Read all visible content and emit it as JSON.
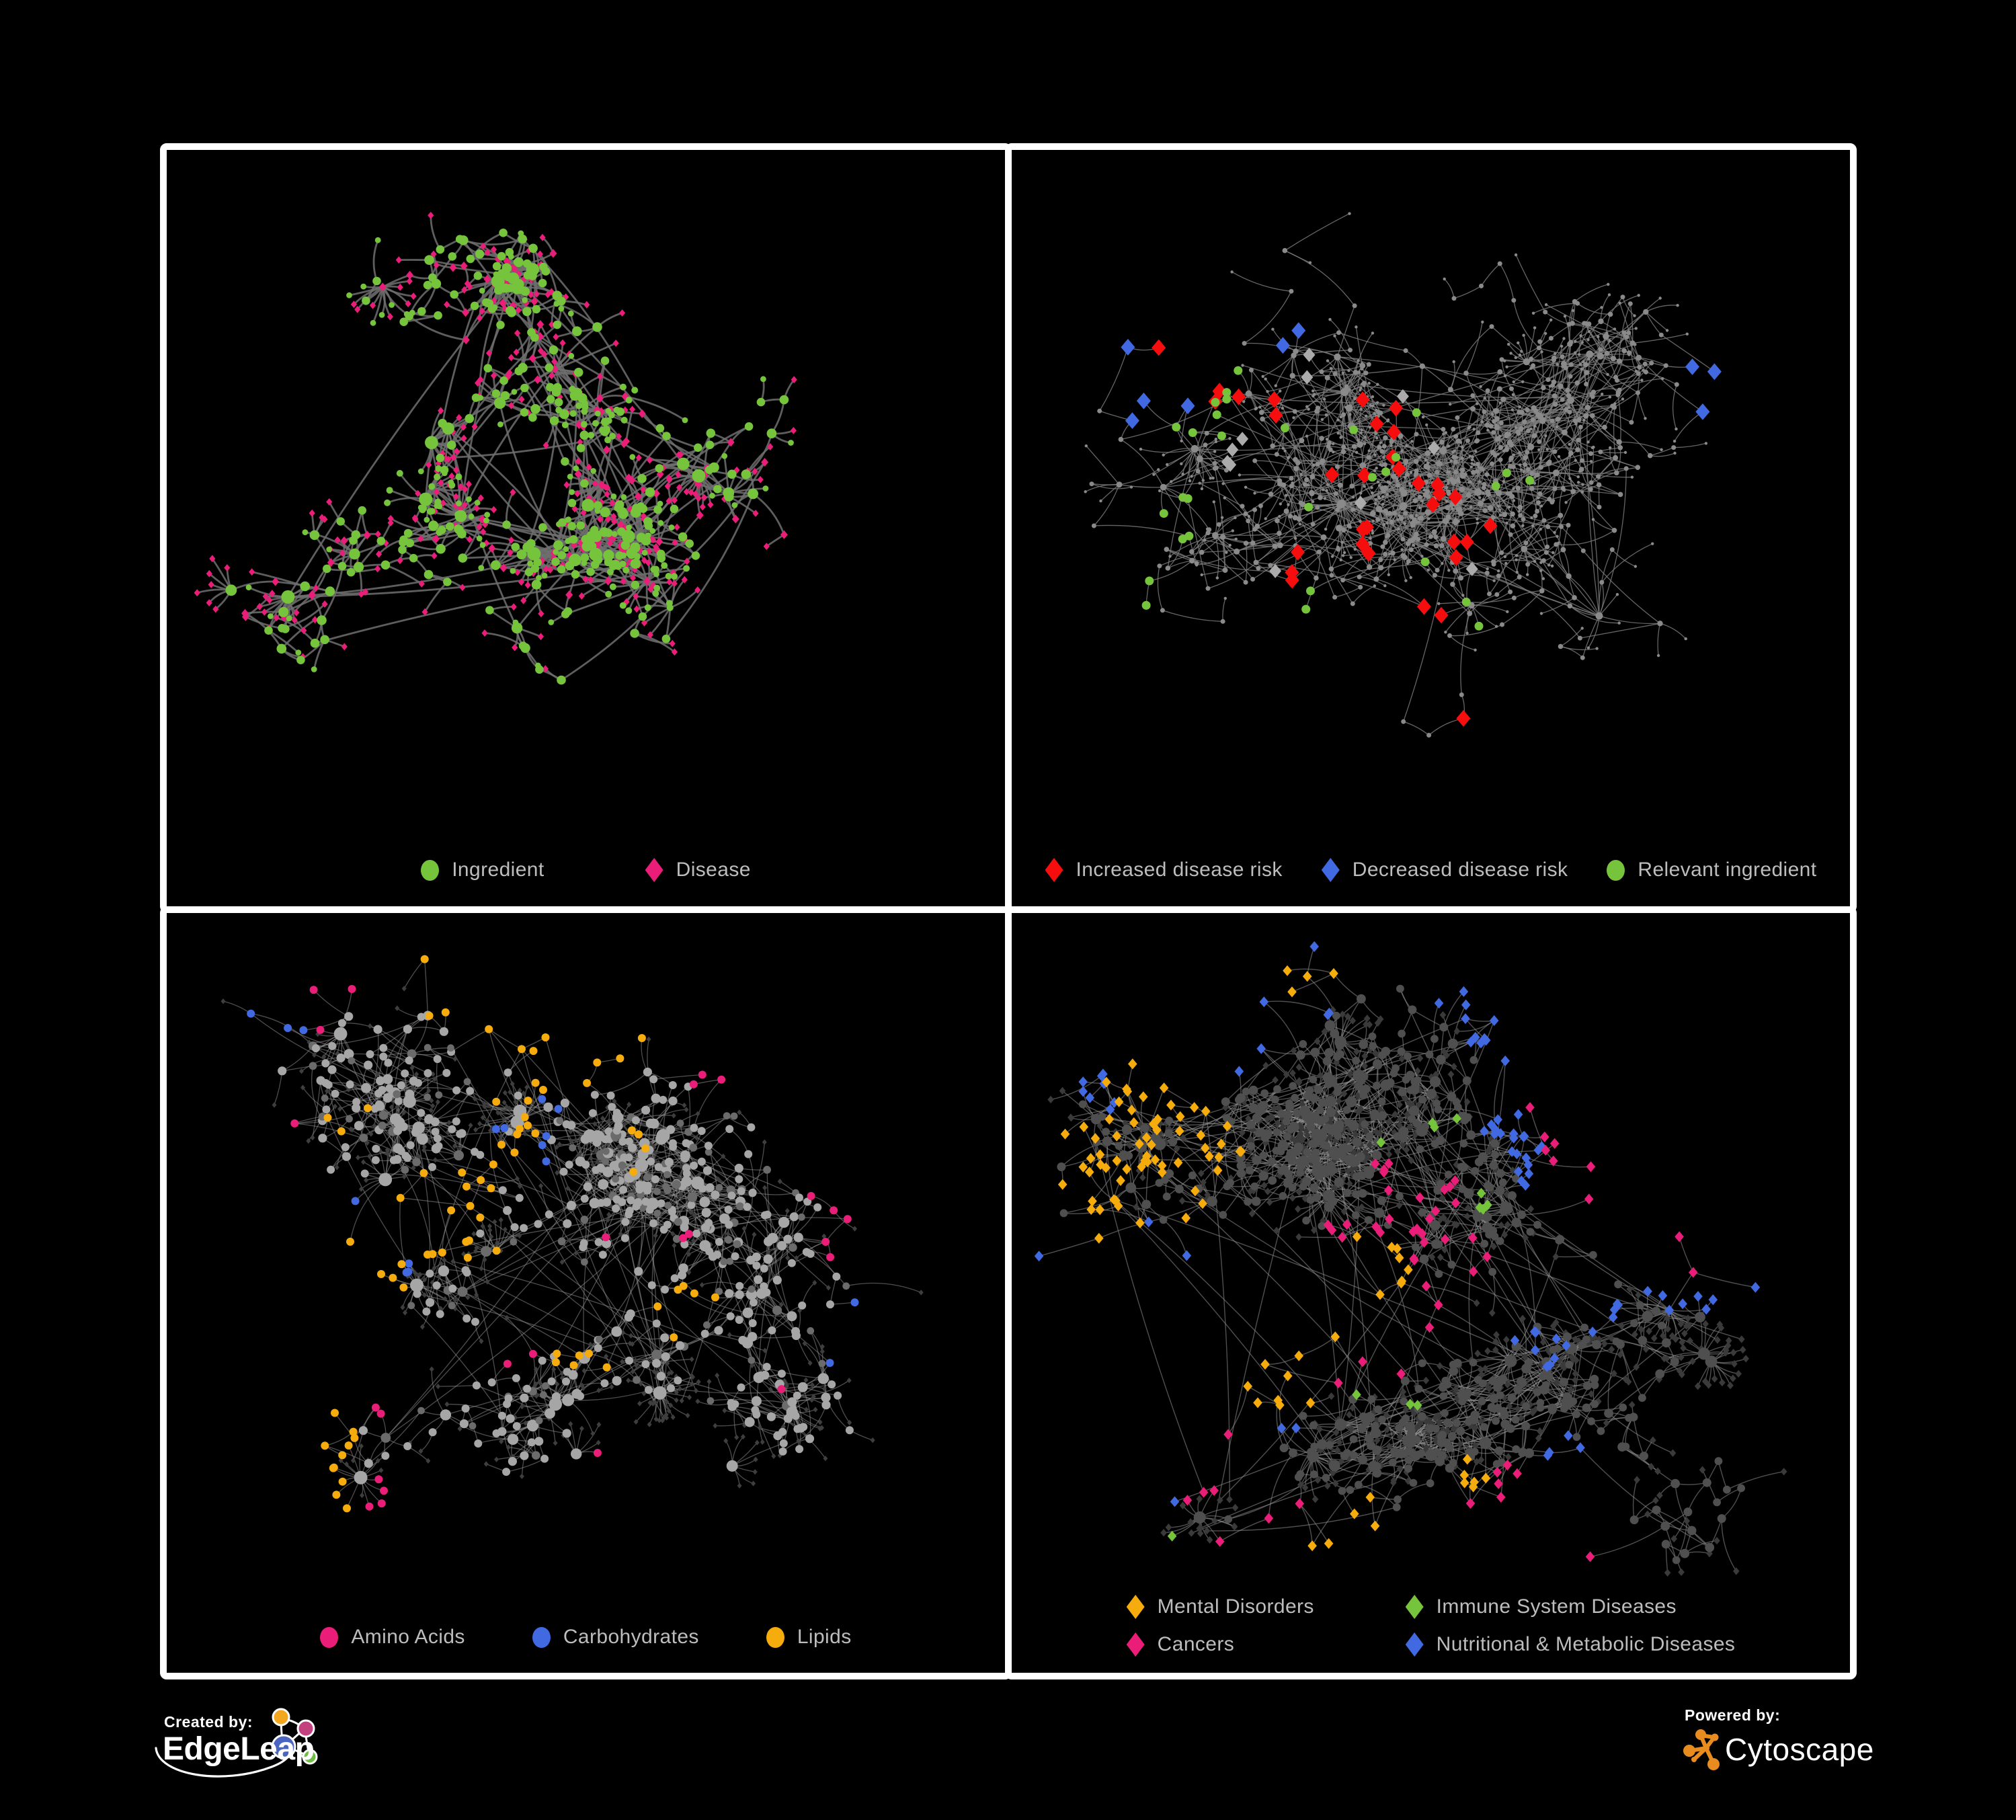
{
  "page": {
    "background": "#000000",
    "panel_border": "#FFFFFF"
  },
  "footer": {
    "created_by_label": "Created by:",
    "created_brand": "EdgeLeap",
    "powered_by_label": "Powered by:",
    "powered_brand": "Cytoscape",
    "edgeleap_colors": {
      "orange": "#F2A71F",
      "magenta": "#C4417F",
      "blue": "#4A66C0",
      "green": "#71BE44",
      "stroke": "#FFFFFF"
    },
    "cytoscape_color": "#E98C1F"
  },
  "panels": [
    {
      "name": "ingredient-disease-network",
      "legend": {
        "layout": "row",
        "items": [
          {
            "label": "Ingredient",
            "shape": "circle",
            "color": "#76C33C"
          },
          {
            "label": "Disease",
            "shape": "diamond",
            "color": "#EA1D79"
          }
        ]
      },
      "network": {
        "seed": 20,
        "nodes": 520,
        "hubs": 11,
        "bursts": 18,
        "cross": 0.06,
        "dmin": 26,
        "dvar": 62,
        "edge": {
          "color": "#6E6E6E",
          "width": 2.8,
          "opacity": 0.85
        },
        "core_foci": [
          [
            0.52,
            0.34
          ],
          [
            0.3,
            0.46
          ],
          [
            0.57,
            0.56
          ]
        ],
        "core_mix": [
          {
            "shape": "circle",
            "color": "#76C33C",
            "size": 5,
            "w": 0.85
          },
          {
            "shape": "diamond",
            "color": "#EA1D79",
            "size": 4.5,
            "w": 0.15
          }
        ],
        "leaf_mix": [
          {
            "shape": "diamond",
            "color": "#EA1D79",
            "size": 4.6,
            "w": 0.7
          },
          {
            "shape": "circle",
            "color": "#76C33C",
            "size": 4.4,
            "w": 0.3
          }
        ],
        "internal_mix": [
          {
            "shape": "circle",
            "color": "#76C33C",
            "size": 5,
            "deg_scale": 1.3,
            "max": 10,
            "w": 0.78
          },
          {
            "shape": "diamond",
            "color": "#EA1D79",
            "size": 5.5,
            "w": 0.22
          }
        ],
        "overlays": []
      }
    },
    {
      "name": "disease-risk-network",
      "legend": {
        "layout": "row",
        "items": [
          {
            "label": "Increased disease risk",
            "shape": "diamond",
            "color": "#F60E0E"
          },
          {
            "label": "Decreased disease risk",
            "shape": "diamond",
            "color": "#4169E1"
          },
          {
            "label": "Relevant ingredient",
            "shape": "circle",
            "color": "#76C33C"
          }
        ]
      },
      "network": {
        "seed": 77,
        "nodes": 880,
        "hubs": 13,
        "bursts": 20,
        "cross": 0.09,
        "dmin": 30,
        "dvar": 95,
        "edge": {
          "color": "#7E7E7E",
          "width": 1.3,
          "opacity": 0.8
        },
        "core_foci": [
          [
            0.4,
            0.32
          ],
          [
            0.27,
            0.3
          ],
          [
            0.52,
            0.4
          ]
        ],
        "leaf_mix": [
          {
            "shape": "circle",
            "color": "#8A8A8A",
            "size": 2.2,
            "w": 1
          }
        ],
        "internal_mix": [
          {
            "shape": "circle",
            "color": "#8A8A8A",
            "size": 2.8,
            "deg_scale": 0.7,
            "max": 6,
            "w": 1
          }
        ],
        "overlays": [
          {
            "shape": "diamond",
            "color": "#F60E0E",
            "size": 10.5,
            "count": 33,
            "spread": 0.05,
            "foci": [
              [
                0.3,
                0.33
              ],
              [
                0.38,
                0.42
              ],
              [
                0.45,
                0.37
              ],
              [
                0.42,
                0.51
              ],
              [
                0.34,
                0.55
              ],
              [
                0.5,
                0.45
              ],
              [
                0.55,
                0.53
              ],
              [
                0.24,
                0.29
              ],
              [
                0.6,
                0.77
              ],
              [
                0.63,
                0.85
              ],
              [
                0.48,
                0.6
              ]
            ]
          },
          {
            "shape": "diamond",
            "color": "#4169E1",
            "size": 10.5,
            "count": 9,
            "spread": 0.02,
            "foci": [
              [
                0.165,
                0.3
              ],
              [
                0.15,
                0.365
              ],
              [
                0.195,
                0.26
              ],
              [
                0.87,
                0.295
              ],
              [
                0.885,
                0.3
              ],
              [
                0.33,
                0.245
              ]
            ]
          },
          {
            "shape": "diamond",
            "color": "#ABABAB",
            "size": 9,
            "count": 11,
            "spread": 0.03,
            "foci": [
              [
                0.115,
                0.275
              ],
              [
                0.26,
                0.4
              ],
              [
                0.355,
                0.305
              ],
              [
                0.5,
                0.375
              ],
              [
                0.42,
                0.47
              ],
              [
                0.545,
                0.55
              ],
              [
                0.3,
                0.545
              ],
              [
                0.47,
                0.3
              ]
            ]
          },
          {
            "shape": "circle",
            "color": "#76C33C",
            "size": 6.5,
            "count": 30,
            "spread": 0.04,
            "foci": [
              [
                0.18,
                0.28
              ],
              [
                0.25,
                0.345
              ],
              [
                0.33,
                0.38
              ],
              [
                0.4,
                0.35
              ],
              [
                0.36,
                0.45
              ],
              [
                0.45,
                0.42
              ],
              [
                0.28,
                0.45
              ],
              [
                0.5,
                0.32
              ],
              [
                0.55,
                0.62
              ],
              [
                0.2,
                0.5
              ],
              [
                0.48,
                0.55
              ],
              [
                0.36,
                0.6
              ],
              [
                0.6,
                0.44
              ],
              [
                0.13,
                0.56
              ]
            ]
          }
        ]
      }
    },
    {
      "name": "nutrient-class-network",
      "legend": {
        "layout": "row",
        "items": [
          {
            "label": "Amino Acids",
            "shape": "circle",
            "color": "#EA1D79"
          },
          {
            "label": "Carbohydrates",
            "shape": "circle",
            "color": "#4169E1"
          },
          {
            "label": "Lipids",
            "shape": "circle",
            "color": "#F5AC0C"
          }
        ]
      },
      "network": {
        "seed": 41,
        "nodes": 860,
        "hubs": 13,
        "bursts": 22,
        "cross": 0.12,
        "dmin": 26,
        "dvar": 80,
        "edge": {
          "color": "#9A9A9A",
          "width": 1.3,
          "opacity": 0.5
        },
        "core_foci": [
          [
            0.38,
            0.44
          ],
          [
            0.25,
            0.52
          ],
          [
            0.6,
            0.64
          ],
          [
            0.44,
            0.26
          ]
        ],
        "leaf_mix": [
          {
            "shape": "diamond",
            "color": "#3E3E3E",
            "size": 3.5,
            "w": 1
          }
        ],
        "internal_mix": [
          {
            "shape": "circle",
            "color": "#A6A6A6",
            "size": 4.5,
            "deg_scale": 1.5,
            "max": 10,
            "w": 0.8
          },
          {
            "shape": "circle",
            "color": "#6B6B6B",
            "size": 4.2,
            "deg_scale": 1.2,
            "max": 8,
            "w": 0.2
          }
        ],
        "overlays": [
          {
            "shape": "circle",
            "color": "#F5AC0C",
            "size": 6,
            "count": 74,
            "spread": 0.045,
            "foci": [
              [
                0.43,
                0.26
              ],
              [
                0.47,
                0.23
              ],
              [
                0.41,
                0.32
              ],
              [
                0.31,
                0.4
              ],
              [
                0.34,
                0.36
              ],
              [
                0.62,
                0.52
              ],
              [
                0.26,
                0.46
              ],
              [
                0.57,
                0.3
              ],
              [
                0.16,
                0.63
              ],
              [
                0.5,
                0.59
              ],
              [
                0.37,
                0.44
              ],
              [
                0.22,
                0.28
              ],
              [
                0.12,
                0.8
              ],
              [
                0.48,
                0.07
              ],
              [
                0.35,
                0.1
              ]
            ]
          },
          {
            "shape": "circle",
            "color": "#4169E1",
            "size": 6,
            "count": 16,
            "spread": 0.025,
            "foci": [
              [
                0.46,
                0.25
              ],
              [
                0.43,
                0.31
              ],
              [
                0.26,
                0.43
              ],
              [
                0.84,
                0.56
              ],
              [
                0.12,
                0.135
              ],
              [
                0.4,
                0.28
              ]
            ]
          },
          {
            "shape": "circle",
            "color": "#EA1D79",
            "size": 6,
            "count": 25,
            "spread": 0.02,
            "foci": [
              [
                0.17,
                0.1
              ],
              [
                0.44,
                0.03
              ],
              [
                0.52,
                0.42
              ],
              [
                0.43,
                0.56
              ],
              [
                0.23,
                0.62
              ],
              [
                0.13,
                0.57
              ],
              [
                0.38,
                0.72
              ],
              [
                0.3,
                0.82
              ],
              [
                0.73,
                0.62
              ],
              [
                0.8,
                0.45
              ],
              [
                0.56,
                0.78
              ],
              [
                0.9,
                0.235
              ],
              [
                0.66,
                0.2
              ],
              [
                0.1,
                0.33
              ],
              [
                0.62,
                0.42
              ]
            ]
          }
        ]
      }
    },
    {
      "name": "disease-class-network",
      "legend": {
        "layout": "grid",
        "items": [
          {
            "label": "Mental Disorders",
            "shape": "diamond",
            "color": "#F5AC0C"
          },
          {
            "label": "Immune System Diseases",
            "shape": "diamond",
            "color": "#76C33C"
          },
          {
            "label": "Cancers",
            "shape": "diamond",
            "color": "#EA1D79"
          },
          {
            "label": "Nutritional & Metabolic Diseases",
            "shape": "diamond",
            "color": "#4169E1"
          }
        ]
      },
      "network": {
        "seed": 9,
        "nodes": 1000,
        "hubs": 14,
        "bursts": 24,
        "cross": 0.1,
        "dmin": 26,
        "dvar": 85,
        "edge": {
          "color": "#8F8F8F",
          "width": 1.4,
          "opacity": 0.55
        },
        "core_foci": [
          [
            0.15,
            0.3
          ],
          [
            0.48,
            0.42
          ],
          [
            0.67,
            0.57
          ],
          [
            0.9,
            0.6
          ],
          [
            0.22,
            0.78
          ],
          [
            0.4,
            0.33
          ]
        ],
        "leaf_mix": [
          {
            "shape": "diamond",
            "color": "#3A3A3A",
            "size": 4.8,
            "w": 1
          }
        ],
        "internal_mix": [
          {
            "shape": "circle",
            "color": "#4F4F4F",
            "size": 4.5,
            "deg_scale": 1.4,
            "max": 9,
            "w": 1
          }
        ],
        "overlays": [
          {
            "shape": "diamond",
            "color": "#F5AC0C",
            "size": 6.8,
            "count": 95,
            "spread": 0.04,
            "foci": [
              [
                0.13,
                0.27
              ],
              [
                0.17,
                0.32
              ],
              [
                0.1,
                0.35
              ],
              [
                0.2,
                0.25
              ],
              [
                0.15,
                0.21
              ],
              [
                0.08,
                0.3
              ],
              [
                0.22,
                0.37
              ],
              [
                0.12,
                0.42
              ],
              [
                0.16,
                0.28
              ],
              [
                0.35,
                0.08
              ],
              [
                0.43,
                0.47
              ],
              [
                0.3,
                0.55
              ],
              [
                0.55,
                0.74
              ],
              [
                0.4,
                0.85
              ],
              [
                0.24,
                0.3
              ]
            ]
          },
          {
            "shape": "diamond",
            "color": "#EA1D79",
            "size": 6.8,
            "count": 58,
            "spread": 0.035,
            "foci": [
              [
                0.45,
                0.35
              ],
              [
                0.5,
                0.4
              ],
              [
                0.43,
                0.45
              ],
              [
                0.54,
                0.45
              ],
              [
                0.48,
                0.52
              ],
              [
                0.41,
                0.52
              ],
              [
                0.52,
                0.36
              ],
              [
                0.88,
                0.18
              ],
              [
                0.91,
                0.155
              ],
              [
                0.21,
                0.74
              ],
              [
                0.59,
                0.88
              ],
              [
                0.36,
                0.93
              ],
              [
                0.46,
                0.41
              ]
            ]
          },
          {
            "shape": "diamond",
            "color": "#4169E1",
            "size": 6.8,
            "count": 78,
            "spread": 0.03,
            "foci": [
              [
                0.62,
                0.55
              ],
              [
                0.655,
                0.58
              ],
              [
                0.7,
                0.52
              ],
              [
                0.75,
                0.3
              ],
              [
                0.79,
                0.25
              ],
              [
                0.72,
                0.22
              ],
              [
                0.84,
                0.35
              ],
              [
                0.6,
                0.25
              ],
              [
                0.55,
                0.2
              ],
              [
                0.15,
                0.08
              ],
              [
                0.25,
                0.05
              ],
              [
                0.64,
                0.05
              ],
              [
                0.78,
                0.08
              ],
              [
                0.67,
                0.72
              ],
              [
                0.3,
                0.67
              ],
              [
                0.11,
                0.6
              ],
              [
                0.86,
                0.28
              ],
              [
                0.5,
                0.08
              ]
            ]
          },
          {
            "shape": "diamond",
            "color": "#76C33C",
            "size": 6.8,
            "count": 12,
            "spread": 0.012,
            "foci": [
              [
                0.44,
                0.3
              ],
              [
                0.4,
                0.6
              ],
              [
                0.52,
                0.28
              ],
              [
                0.36,
                0.4
              ],
              [
                0.48,
                0.64
              ],
              [
                0.21,
                0.87
              ],
              [
                0.57,
                0.38
              ]
            ]
          }
        ]
      }
    }
  ]
}
